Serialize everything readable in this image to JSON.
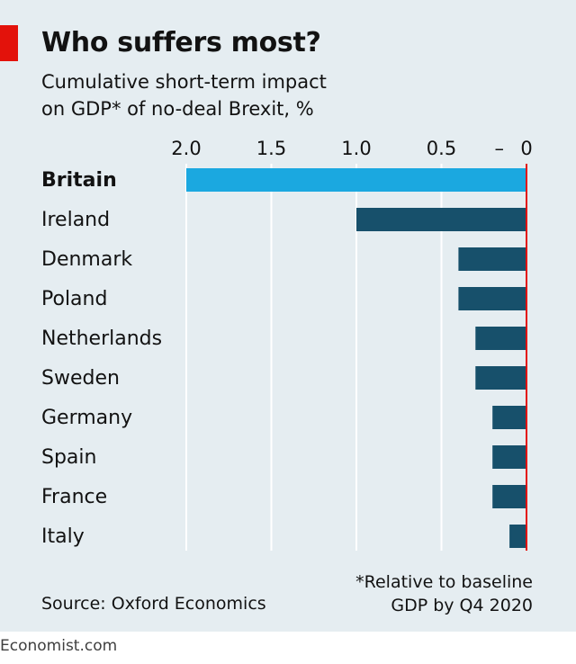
{
  "title": "Who suffers most?",
  "subtitle_line1": "Cumulative short-term impact",
  "subtitle_line2": "on GDP* of no-deal Brexit, %",
  "footnote_line1": "*Relative to baseline",
  "footnote_line2": "GDP by Q4 2020",
  "source": "Source: Oxford Economics",
  "brand": "Economist.com",
  "colors": {
    "panel_bg": "#e5edf1",
    "highlight_bar": "#1ba8e0",
    "bar": "#17506b",
    "zero_line": "#e3120b",
    "grid": "#ffffff",
    "text": "#121212"
  },
  "chart_data": {
    "type": "bar",
    "orientation": "horizontal",
    "categories": [
      "Britain",
      "Ireland",
      "Denmark",
      "Poland",
      "Netherlands",
      "Sweden",
      "Germany",
      "Spain",
      "France",
      "Italy"
    ],
    "values": [
      -2.0,
      -1.0,
      -0.4,
      -0.4,
      -0.3,
      -0.3,
      -0.2,
      -0.2,
      -0.2,
      -0.1
    ],
    "highlight": "Britain",
    "xlim": [
      -2.0,
      0
    ],
    "ticks": [
      -2.0,
      -1.5,
      -1.0,
      -0.5,
      0
    ],
    "tick_labels": [
      "2.0",
      "1.5",
      "1.0",
      "0.5",
      "0"
    ],
    "minus_sign": "–",
    "axis_position": "top",
    "grid": true
  }
}
